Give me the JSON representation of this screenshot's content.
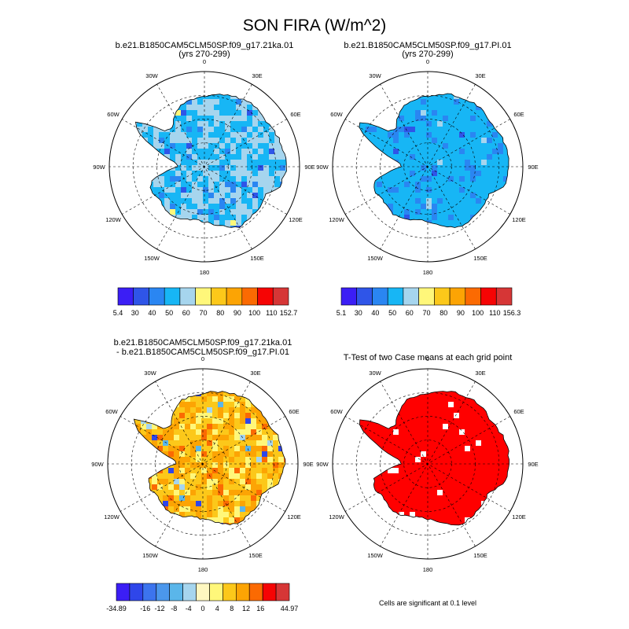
{
  "figure": {
    "title": "SON FIRA (W/m^2)"
  },
  "colors": {
    "land_fill": "#4d4d4d",
    "coast": "#000000",
    "grid": "#000000",
    "significant": "#ff0000"
  },
  "chart_data": [
    {
      "type": "heatmap",
      "projection": "south-polar-stereographic",
      "title_line1": "b.e21.B1850CAM5CLM50SP.f09_g17.21ka.01",
      "title_line2": "(yrs 270-299)",
      "longitude_labels": [
        "0",
        "30E",
        "60E",
        "90E",
        "120E",
        "150E",
        "180",
        "150W",
        "120W",
        "90W",
        "60W",
        "30W"
      ],
      "colorbar": {
        "labels": [
          "5.4",
          "30",
          "40",
          "50",
          "60",
          "70",
          "80",
          "90",
          "100",
          "110",
          "152.7"
        ],
        "colors": [
          "#3b1ef5",
          "#2f55e8",
          "#2a86f2",
          "#17b6f5",
          "#a6d5ee",
          "#fff77a",
          "#fcc81a",
          "#fca404",
          "#fb6a02",
          "#f60404",
          "#d63636"
        ]
      },
      "dominant_levels": [
        "50-60",
        "60-70",
        "40-50"
      ]
    },
    {
      "type": "heatmap",
      "projection": "south-polar-stereographic",
      "title_line1": "b.e21.B1850CAM5CLM50SP.f09_g17.PI.01",
      "title_line2": "(yrs 270-299)",
      "longitude_labels": [
        "0",
        "30E",
        "60E",
        "90E",
        "120E",
        "150E",
        "180",
        "150W",
        "120W",
        "90W",
        "60W",
        "30W"
      ],
      "colorbar": {
        "labels": [
          "5.1",
          "30",
          "40",
          "50",
          "60",
          "70",
          "80",
          "90",
          "100",
          "110",
          "156.3"
        ],
        "colors": [
          "#3b1ef5",
          "#2f55e8",
          "#2a86f2",
          "#17b6f5",
          "#a6d5ee",
          "#fff77a",
          "#fcc81a",
          "#fca404",
          "#fb6a02",
          "#f60404",
          "#d63636"
        ]
      },
      "dominant_levels": [
        "50-60",
        "40-50"
      ]
    },
    {
      "type": "heatmap",
      "projection": "south-polar-stereographic",
      "title_line1": "b.e21.B1850CAM5CLM50SP.f09_g17.21ka.01",
      "title_line2": "- b.e21.B1850CAM5CLM50SP.f09_g17.PI.01",
      "longitude_labels": [
        "0",
        "30E",
        "60E",
        "90E",
        "120E",
        "150E",
        "180",
        "150W",
        "120W",
        "90W",
        "60W",
        "30W"
      ],
      "colorbar": {
        "labels": [
          "-34.89",
          "",
          "-16",
          "-12",
          "-8",
          "-4",
          "0",
          "4",
          "8",
          "12",
          "16",
          "",
          "44.97"
        ],
        "colors": [
          "#3b1ef5",
          "#2f46ea",
          "#3c74ee",
          "#4b97ec",
          "#5ab6ea",
          "#a6d5ee",
          "#fef7c0",
          "#fff77a",
          "#fcc81a",
          "#fca404",
          "#fb6a02",
          "#f60404",
          "#d63636"
        ]
      },
      "dominant_levels": [
        "4-8",
        "8-12",
        "12-16"
      ]
    },
    {
      "type": "heatmap",
      "projection": "south-polar-stereographic",
      "title_line1": "T-Test of two Case means at each grid point",
      "longitude_labels": [
        "0",
        "30E",
        "60E",
        "90E",
        "120E",
        "150E",
        "180",
        "150W",
        "120W",
        "90W",
        "60W",
        "30W"
      ],
      "note": "Cells are significant at 0.1 level"
    }
  ]
}
